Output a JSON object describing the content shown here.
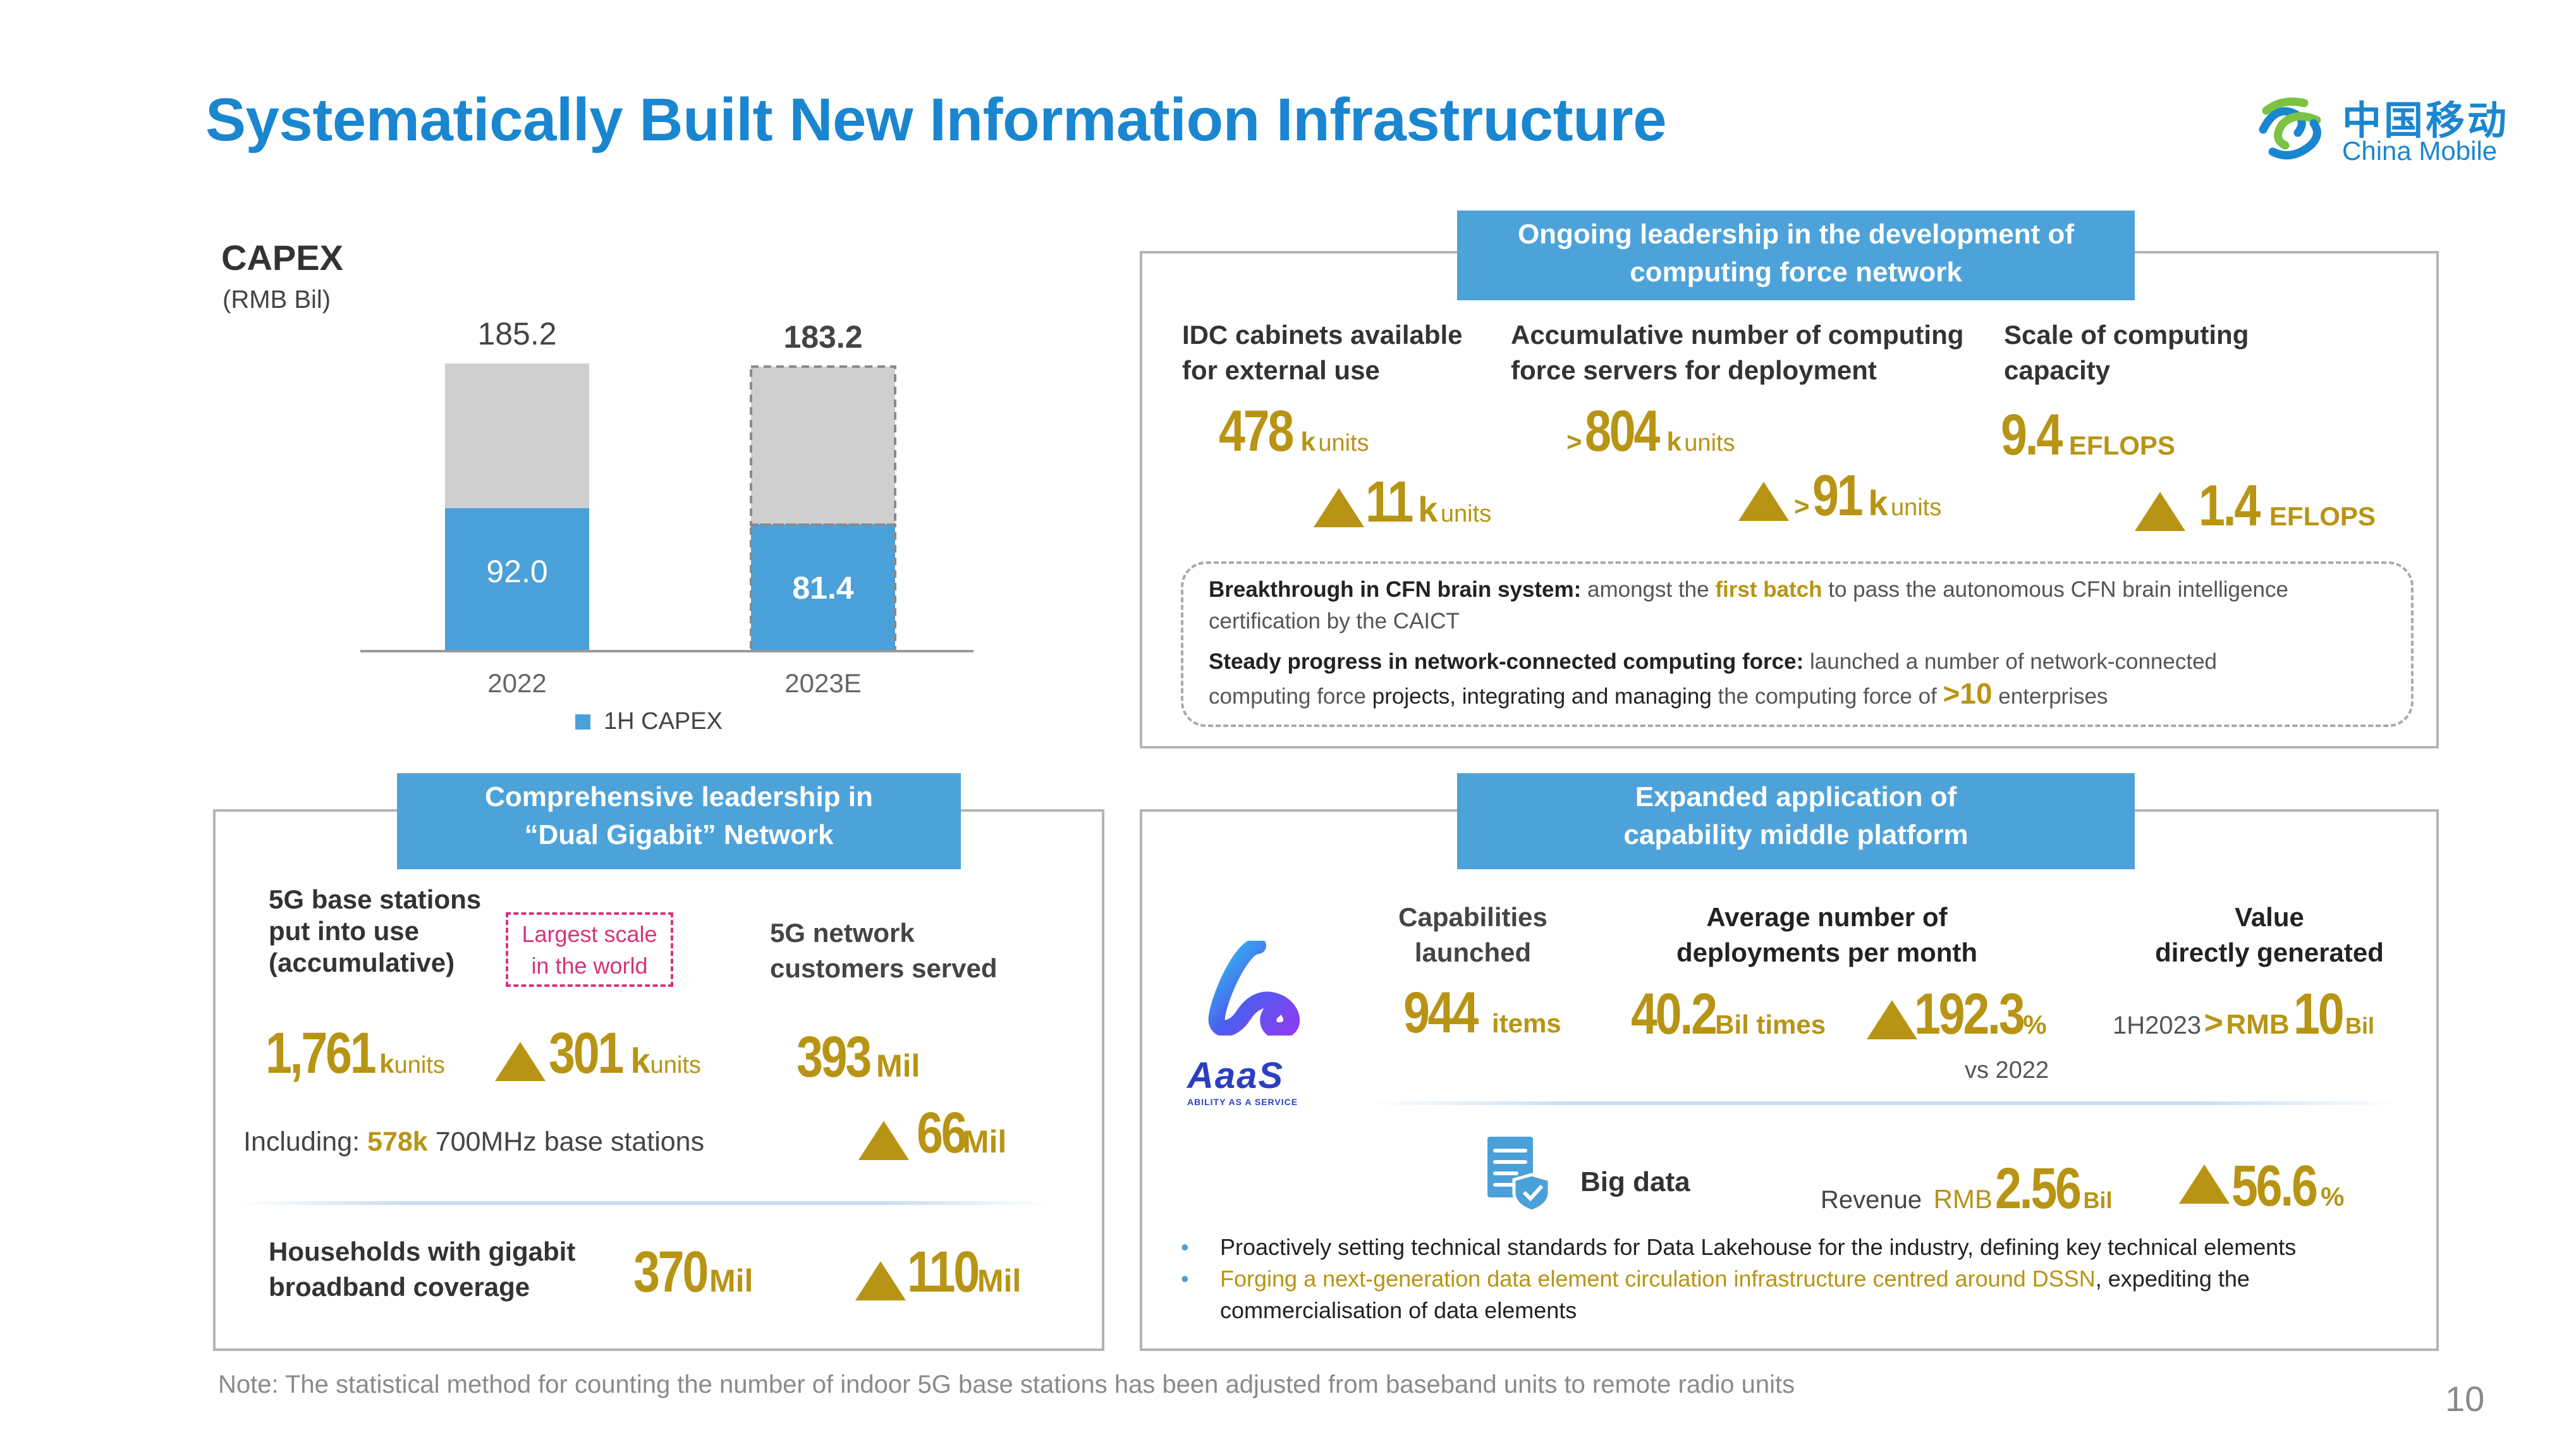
{
  "page": {
    "title": "Systematically Built New Information Infrastructure",
    "logo_cn": "中国移动",
    "logo_en": "China Mobile",
    "note": "Note: The statistical method for counting the number of indoor 5G base stations has been adjusted from baseband units to remote radio units",
    "page_number": "10"
  },
  "colors": {
    "brand_blue": "#1a86d0",
    "bar_blue": "#4aa0d8",
    "bar_grey": "#cfcfcf",
    "gold": "#b89414",
    "banner": "#4da3d9"
  },
  "chart_data": {
    "type": "bar",
    "title": "CAPEX",
    "subtitle": "(RMB Bil)",
    "categories": [
      "2022",
      "2023E"
    ],
    "totals": [
      185.2,
      183.2
    ],
    "total_labels": [
      "185.2",
      "183.2"
    ],
    "series": [
      {
        "name": "1H CAPEX",
        "values": [
          92.0,
          81.4
        ],
        "labels": [
          "92.0",
          "81.4"
        ]
      }
    ],
    "legend": "1H CAPEX",
    "legend_position": "bottom",
    "ylim": [
      0,
      185.2
    ],
    "stacked": true,
    "grid": false
  },
  "cfn": {
    "banner": [
      "Ongoing leadership in the development of",
      "computing force network"
    ],
    "col1": {
      "label": [
        "IDC cabinets available",
        "for external use"
      ],
      "value": "478",
      "k": "k",
      "unit": "units",
      "inc": "11",
      "inc_k": "k",
      "inc_unit": "units"
    },
    "col2": {
      "label": [
        "Accumulative number of computing",
        "force servers for deployment"
      ],
      "prefix": ">",
      "value": "804",
      "k": "k",
      "unit": "units",
      "inc_prefix": ">",
      "inc": "91",
      "inc_k": "k",
      "inc_unit": "units"
    },
    "col3": {
      "label": [
        "Scale of computing",
        "capacity"
      ],
      "value": "9.4",
      "unit": "EFLOPS",
      "inc": "1.4",
      "inc_unit": "EFLOPS"
    },
    "box": {
      "line1_bold": "Breakthrough in CFN brain system:",
      "line1_a": " amongst the ",
      "line1_gold": "first batch",
      "line1_b": " to pass the autonomous CFN brain intelligence",
      "line1_c": "certification by the CAICT",
      "line2_bold": "Steady progress in network-connected computing force:",
      "line2_a": " launched a number of network-connected",
      "line2_b": "computing force ",
      "line2_c": "projects, integrating and managing",
      "line2_d": " the computing force of ",
      "line2_gold": ">10",
      "line2_e": " enterprises"
    }
  },
  "gigabit": {
    "banner": [
      "Comprehensive leadership in",
      "“Dual Gigabit” Network"
    ],
    "bs_label": [
      "5G base stations",
      "put into use",
      "(accumulative)"
    ],
    "tag": [
      "Largest scale",
      "in the world"
    ],
    "cust_label": [
      "5G network",
      "customers served"
    ],
    "bs_value": "1,761",
    "bs_k": "k",
    "bs_unit": "units",
    "bs_inc": "301",
    "bs_inc_k": "k",
    "bs_inc_unit": "units",
    "cust_value": "393",
    "cust_unit": "Mil",
    "including_a": "Including: ",
    "including_gold": "578k",
    "including_b": " 700MHz base stations",
    "cust_inc": "66",
    "cust_inc_unit": "Mil",
    "hh_label": [
      "Households with gigabit",
      "broadband coverage"
    ],
    "hh_value": "370",
    "hh_unit": "Mil",
    "hh_inc": "110",
    "hh_inc_unit": "Mil"
  },
  "aaas": {
    "banner": [
      "Expanded application of",
      "capability middle platform"
    ],
    "logo_text": "AaaS",
    "logo_sub": "ABILITY AS A SERVICE",
    "cap_label": [
      "Capabilities",
      "launched"
    ],
    "cap_value": "944",
    "cap_unit": "items",
    "dep_label": [
      "Average number of",
      "deployments per month"
    ],
    "dep_value": "40.2",
    "dep_unit": "Bil times",
    "dep_inc": "192.3",
    "dep_inc_unit": "%",
    "dep_vs": "vs 2022",
    "val_label": [
      "Value",
      "directly generated"
    ],
    "val_prefix": "1H2023",
    "val_gt": ">",
    "val_rmb": "RMB",
    "val_value": "10",
    "val_unit": "Bil",
    "bigdata_label": "Big data",
    "rev_label": "Revenue",
    "rev_rmb": "RMB",
    "rev_value": "2.56",
    "rev_unit": "Bil",
    "rev_inc": "56.6",
    "rev_inc_unit": "%",
    "bullet1": "Proactively setting technical standards for Data Lakehouse for the industry, defining key technical elements",
    "bullet2_gold": "Forging a next-generation data element circulation infrastructure centred around DSSN",
    "bullet2_b": ", expediting the",
    "bullet2_c": "commercialisation of data elements"
  }
}
